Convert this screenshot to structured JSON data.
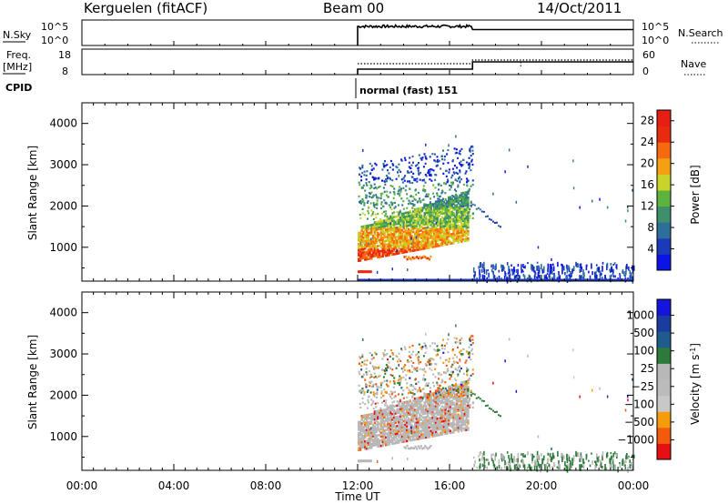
{
  "header": {
    "station": "Kerguelen (fitACF)",
    "beam": "Beam 00",
    "date": "14/Oct/2011"
  },
  "strips": {
    "nsky": {
      "label": "N.Sky",
      "ticks": [
        "10^5",
        "10^0"
      ]
    },
    "nsearch": {
      "label": "N.Search",
      "ticks": [
        "10^5",
        "10^0"
      ]
    },
    "freq": {
      "label_line1": "Freq.",
      "label_line2": "[MHz]",
      "ticks": [
        "18",
        "8"
      ]
    },
    "nave": {
      "label": "Nave",
      "ticks": [
        "60",
        "0"
      ]
    },
    "cpid": {
      "label": "CPID",
      "text": "normal (fast) 151"
    }
  },
  "colors": {
    "power": [
      "#0a14e6",
      "#1a3ab8",
      "#2d6e9a",
      "#3e8f6a",
      "#5cb43e",
      "#c8d42a",
      "#f5a012",
      "#f56a0e",
      "#e82a10",
      "#e61e14"
    ],
    "velocity": [
      "#e60f14",
      "#f25a0e",
      "#f59c0c",
      "#c8c8c8",
      "#bbbbbb",
      "#b8b8b8",
      "#2e7a3a",
      "#1e5c8e",
      "#1a3c9e",
      "#1414dc"
    ],
    "scatter_gray": "#b8b8b8"
  },
  "chart_data": [
    {
      "type": "heatmap",
      "name": "power",
      "ylabel": "Slant Range [km]",
      "ylim": [
        180,
        4500
      ],
      "yticks": [
        "1000",
        "2000",
        "3000",
        "4000"
      ],
      "colorbar_label": "Power [dB]",
      "colorbar_ticks": [
        "4",
        "8",
        "12",
        "16",
        "20",
        "24",
        "28"
      ],
      "colorbar_range": [
        0,
        30
      ]
    },
    {
      "type": "heatmap",
      "name": "velocity",
      "ylabel": "Slant Range [km]",
      "ylim": [
        180,
        4500
      ],
      "yticks": [
        "1000",
        "2000",
        "3000",
        "4000"
      ],
      "colorbar_label": "Velocity [m s",
      "colorbar_label_sup": "-1",
      "colorbar_label_end": "]",
      "colorbar_ticks": [
        "1000",
        "500",
        "100",
        "25",
        "−25",
        "−100",
        "−500",
        "−1000"
      ]
    }
  ],
  "xaxis": {
    "title": "Time UT",
    "ticks": [
      "00:00",
      "04:00",
      "08:00",
      "12:00",
      "16:00",
      "20:00",
      "00:00"
    ],
    "range_hours": [
      0,
      24
    ]
  }
}
